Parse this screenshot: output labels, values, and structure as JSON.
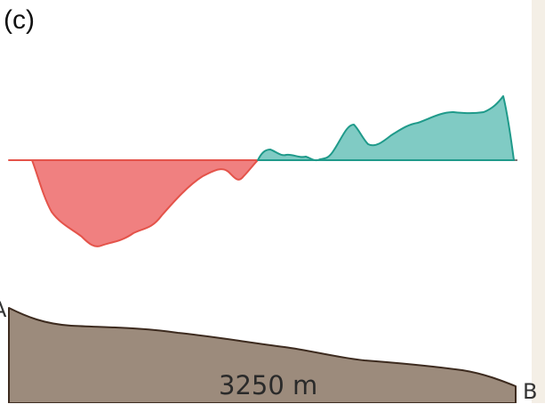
{
  "figure": {
    "panel_label": "(c)",
    "start_label": "A",
    "end_label": "B",
    "distance_label": "3250 m"
  },
  "colors": {
    "negative_fill": "#f08080",
    "negative_stroke": "#e4534a",
    "positive_fill": "#80cbc4",
    "positive_stroke": "#1f9a8a",
    "terrain_fill": "#9c8b7c",
    "terrain_stroke": "#3d2b1f",
    "baseline": "#7a7a7a"
  }
}
